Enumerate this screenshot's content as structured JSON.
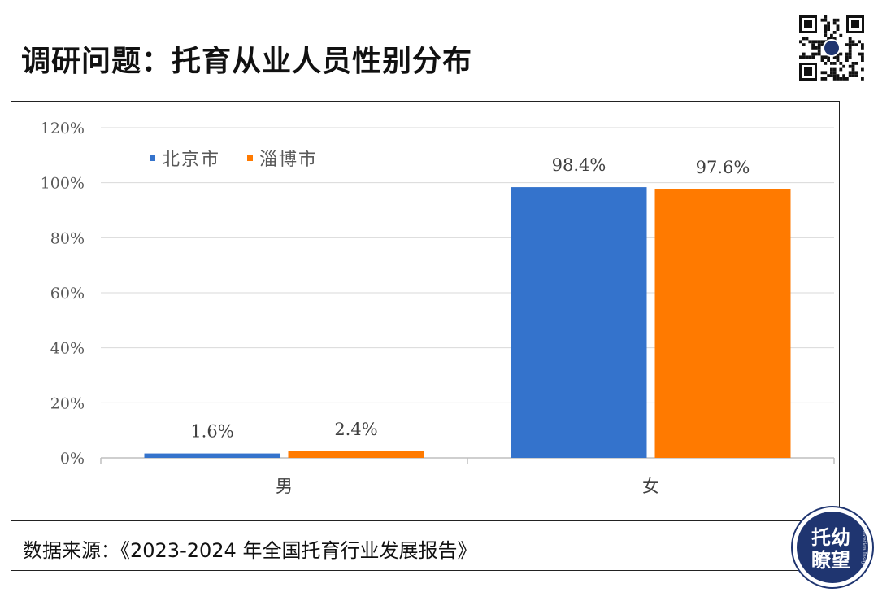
{
  "page": {
    "title": "调研问题：托育从业人员性别分布",
    "source": "数据来源：《2023-2024 年全国托育行业发展报告》",
    "logo_text": [
      "托幼",
      "瞭望"
    ],
    "logo_ring_text": "Education Insight"
  },
  "chart_data": {
    "type": "bar",
    "categories": [
      "男",
      "女"
    ],
    "series": [
      {
        "name": "北京市",
        "values": [
          1.6,
          98.4
        ],
        "labels": [
          "1.6%",
          "98.4%"
        ],
        "color": "#3473CC"
      },
      {
        "name": "淄博市",
        "values": [
          2.4,
          97.6
        ],
        "labels": [
          "2.4%",
          "97.6%"
        ],
        "color": "#FF7A00"
      }
    ],
    "yticks": [
      "0%",
      "20%",
      "40%",
      "60%",
      "80%",
      "100%",
      "120%"
    ],
    "ylim": [
      0,
      120
    ],
    "grid": true,
    "legend_position": "top-left"
  },
  "colors": {
    "grid": "#d9d9d9",
    "axis": "#bfbfbf",
    "tick_text": "#595959",
    "logo_bg": "#1f3570"
  }
}
